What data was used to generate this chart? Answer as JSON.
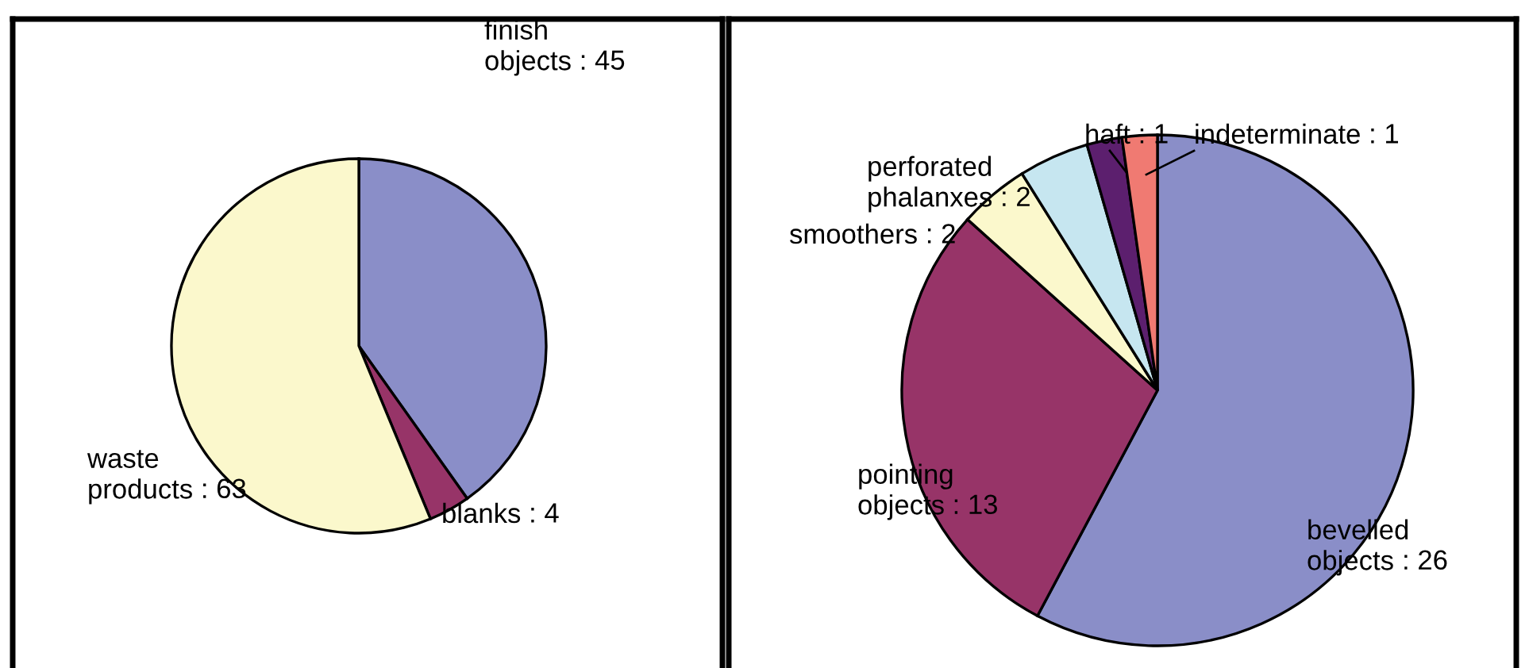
{
  "chart_data": [
    {
      "type": "pie",
      "categories": [
        "finish\nobjects",
        "blanks",
        "waste\nproducts"
      ],
      "values": [
        45,
        4,
        63
      ],
      "colors": [
        "#8a8ec8",
        "#973468",
        "#fbf8cc"
      ],
      "value_labels": [
        ": 45",
        ": 4",
        ": 63"
      ]
    },
    {
      "type": "pie",
      "categories": [
        "bevelled\nobjects",
        "pointing\nobjects",
        "smoothers",
        "perforated\nphalanxes",
        "haft",
        "indeterminate"
      ],
      "values": [
        26,
        13,
        2,
        2,
        1,
        1
      ],
      "colors": [
        "#8a8ec8",
        "#973468",
        "#fbf8cc",
        "#c6e6f0",
        "#5c1f6e",
        "#f07a72"
      ],
      "value_labels": [
        ": 26",
        ": 13",
        ": 2",
        ": 2",
        ": 1",
        ": 1"
      ]
    }
  ]
}
